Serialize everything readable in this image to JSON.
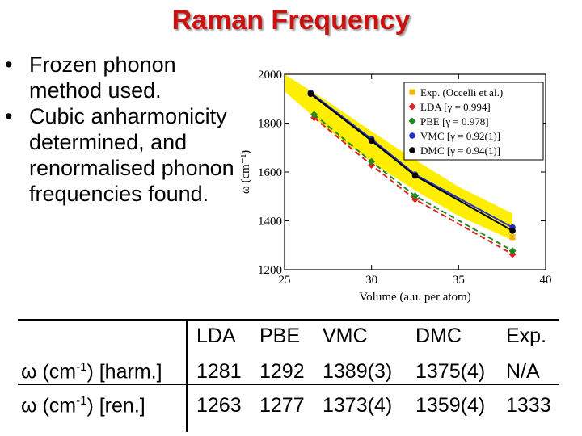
{
  "slide": {
    "title": "Raman Frequency",
    "bullets": [
      "Frozen phonon method used.",
      "Cubic anharmonicity determined, and renormalised phonon frequencies found."
    ]
  },
  "chart_data": {
    "type": "line",
    "xlabel": "Volume (a.u. per atom)",
    "ylabel": "ω (cm⁻¹)",
    "xlim": [
      25,
      40
    ],
    "ylim": [
      1200,
      2000
    ],
    "xticks": [
      "25",
      "30",
      "35",
      "40"
    ],
    "yticks": [
      "1200",
      "1400",
      "1600",
      "1800",
      "2000"
    ],
    "legend_position": "top-right",
    "series": [
      {
        "name": "Exp. (Occelli et al.)",
        "color": "#f0b400",
        "marker": "square",
        "dashed": false,
        "points": [
          [
            38.1,
            1333
          ]
        ]
      },
      {
        "name": "LDA [γ = 0.994]",
        "color": "#dd2222",
        "marker": "diamond",
        "dashed": true,
        "points": [
          [
            26.7,
            1822
          ],
          [
            30.0,
            1628
          ],
          [
            32.5,
            1488
          ],
          [
            38.1,
            1263
          ]
        ]
      },
      {
        "name": "PBE [γ = 0.978]",
        "color": "#228822",
        "marker": "diamond",
        "dashed": true,
        "points": [
          [
            26.7,
            1835
          ],
          [
            30.0,
            1642
          ],
          [
            32.5,
            1502
          ],
          [
            38.1,
            1277
          ]
        ]
      },
      {
        "name": "VMC [γ = 0.92(1)]",
        "color": "#2233cc",
        "marker": "circle",
        "dashed": false,
        "points": [
          [
            26.5,
            1925
          ],
          [
            30.0,
            1735
          ],
          [
            32.5,
            1590
          ],
          [
            38.1,
            1373
          ]
        ]
      },
      {
        "name": "DMC [γ = 0.94(1)]",
        "color": "#000000",
        "marker": "circle",
        "dashed": false,
        "points": [
          [
            26.5,
            1920
          ],
          [
            30.0,
            1728
          ],
          [
            32.5,
            1585
          ],
          [
            38.1,
            1359
          ]
        ]
      }
    ],
    "band": {
      "color": "#ffee00",
      "upper": [
        [
          25.0,
          2000
        ],
        [
          27.5,
          1888
        ],
        [
          30.0,
          1766
        ],
        [
          32.5,
          1650
        ],
        [
          35.0,
          1540
        ],
        [
          38.1,
          1430
        ]
      ],
      "lower": [
        [
          25.0,
          1930
        ],
        [
          27.5,
          1775
        ],
        [
          30.0,
          1640
        ],
        [
          32.5,
          1525
        ],
        [
          35.0,
          1420
        ],
        [
          38.1,
          1320
        ]
      ]
    }
  },
  "table": {
    "headers": [
      "LDA",
      "PBE",
      "VMC",
      "DMC",
      "Exp."
    ],
    "rows": [
      {
        "label": "ω (cm",
        "sup": "-1",
        "label_tail": ") [harm.]",
        "values": [
          "1281",
          "1292",
          "1389(3)",
          "1375(4)",
          "N/A"
        ]
      },
      {
        "label": "ω (cm",
        "sup": "-1",
        "label_tail": ") [ren.]",
        "values": [
          "1263",
          "1277",
          "1373(4)",
          "1359(4)",
          "1333"
        ]
      }
    ]
  }
}
